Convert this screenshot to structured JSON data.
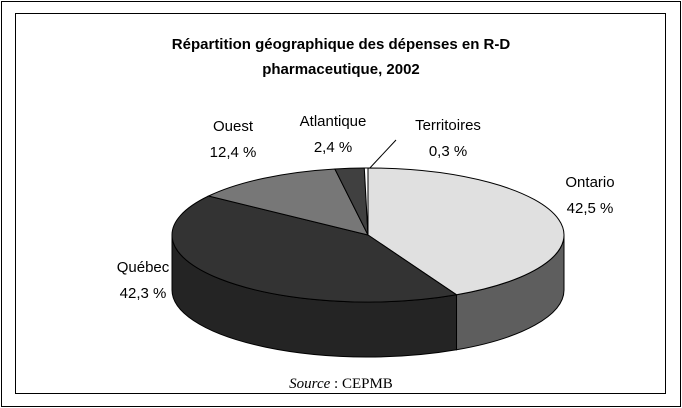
{
  "chart_data": {
    "type": "pie",
    "title": "Répartition géographique des dépenses en R-D pharmaceutique, 2002",
    "categories": [
      "Ontario",
      "Québec",
      "Ouest",
      "Atlantique",
      "Territoires"
    ],
    "values": [
      42.5,
      42.3,
      12.4,
      2.4,
      0.3
    ],
    "value_labels": [
      "42,5 %",
      "42,3 %",
      "12,4 %",
      "2,4 %",
      "0,3 %"
    ],
    "colors": [
      "#e0e0e0",
      "#333333",
      "#777777",
      "#404040",
      "#ffffff"
    ],
    "source_label": "Source",
    "source_text": ": CEPMB"
  }
}
